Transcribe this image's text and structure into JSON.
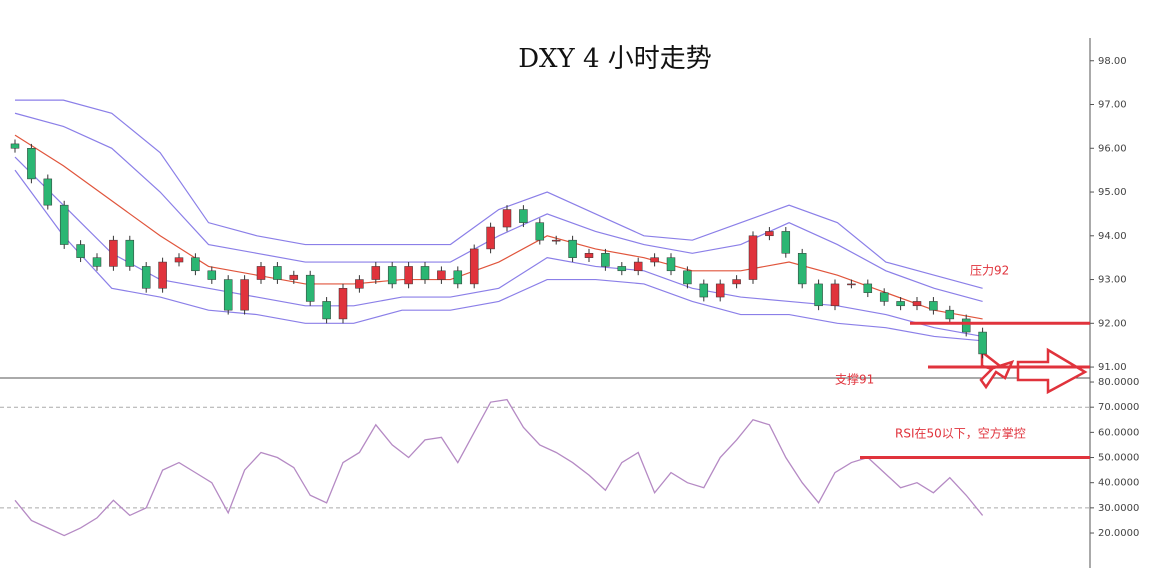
{
  "chart_data": [
    {
      "type": "candlestick",
      "title": "DXY 4 小时走势",
      "open": [
        96.1,
        96.0,
        95.3,
        94.7,
        93.8,
        93.5,
        93.3,
        93.9,
        93.3,
        92.8,
        93.4,
        93.5,
        93.2,
        93.0,
        92.3,
        93.0,
        93.3,
        93.0,
        93.1,
        92.5,
        92.1,
        92.8,
        93.0,
        93.3,
        92.9,
        93.3,
        93.0,
        93.2,
        92.9,
        93.7,
        94.2,
        94.6,
        94.3,
        93.9,
        93.9,
        93.5,
        93.6,
        93.3,
        93.2,
        93.4,
        93.5,
        93.2,
        92.9,
        92.6,
        92.9,
        93.0,
        94.0,
        94.1,
        93.6,
        92.9,
        92.4,
        92.9,
        92.9,
        92.7,
        92.5,
        92.4,
        92.5,
        92.3,
        92.1,
        91.8
      ],
      "high": [
        96.2,
        96.1,
        95.4,
        94.8,
        93.9,
        93.6,
        94.0,
        94.0,
        93.4,
        93.5,
        93.6,
        93.6,
        93.3,
        93.1,
        93.1,
        93.4,
        93.4,
        93.2,
        93.2,
        92.6,
        92.9,
        93.1,
        93.4,
        93.4,
        93.4,
        93.4,
        93.3,
        93.3,
        93.8,
        94.3,
        94.7,
        94.7,
        94.4,
        94.0,
        94.0,
        93.7,
        93.7,
        93.4,
        93.5,
        93.6,
        93.6,
        93.3,
        93.0,
        93.0,
        93.1,
        94.1,
        94.2,
        94.2,
        93.7,
        93.0,
        93.0,
        93.0,
        93.0,
        92.8,
        92.6,
        92.6,
        92.6,
        92.4,
        92.2,
        91.9
      ],
      "low": [
        95.9,
        95.2,
        94.6,
        93.7,
        93.4,
        93.2,
        93.2,
        93.2,
        92.7,
        92.7,
        93.3,
        93.1,
        92.9,
        92.2,
        92.2,
        92.9,
        92.9,
        92.9,
        92.4,
        92.0,
        92.0,
        92.7,
        92.9,
        92.8,
        92.8,
        92.9,
        92.9,
        92.8,
        92.8,
        93.6,
        94.1,
        94.2,
        93.8,
        93.8,
        93.4,
        93.4,
        93.2,
        93.1,
        93.1,
        93.3,
        93.1,
        92.8,
        92.5,
        92.5,
        92.8,
        92.9,
        93.9,
        93.5,
        92.8,
        92.3,
        92.3,
        92.8,
        92.6,
        92.4,
        92.3,
        92.3,
        92.2,
        92.0,
        91.7,
        91.2
      ],
      "close": [
        96.0,
        95.3,
        94.7,
        93.8,
        93.5,
        93.3,
        93.9,
        93.3,
        92.8,
        93.4,
        93.5,
        93.2,
        93.0,
        92.3,
        93.0,
        93.3,
        93.0,
        93.1,
        92.5,
        92.1,
        92.8,
        93.0,
        93.3,
        92.9,
        93.3,
        93.0,
        93.2,
        92.9,
        93.7,
        94.2,
        94.6,
        94.3,
        93.9,
        93.9,
        93.5,
        93.6,
        93.3,
        93.2,
        93.4,
        93.5,
        93.2,
        92.9,
        92.6,
        92.9,
        93.0,
        94.0,
        94.1,
        93.6,
        92.9,
        92.4,
        92.9,
        92.9,
        92.7,
        92.5,
        92.4,
        92.5,
        92.3,
        92.1,
        91.8,
        91.3
      ],
      "up_color": "#e0333c",
      "down_color": "#2bb673",
      "bands": [
        {
          "color": "#e0553c",
          "values": [
            96.3,
            95.6,
            94.8,
            94.0,
            93.3,
            93.1,
            92.9,
            92.9,
            93.0,
            93.0,
            93.4,
            94.0,
            93.7,
            93.5,
            93.2,
            93.2,
            93.4,
            93.1,
            92.7,
            92.3,
            92.1
          ]
        },
        {
          "color": "#8b7fe8",
          "values": [
            96.8,
            96.5,
            96.0,
            95.0,
            93.8,
            93.6,
            93.4,
            93.4,
            93.4,
            93.4,
            94.0,
            94.5,
            94.1,
            93.8,
            93.6,
            93.8,
            94.3,
            93.8,
            93.2,
            92.8,
            92.5
          ]
        },
        {
          "color": "#8b7fe8",
          "values": [
            97.1,
            97.1,
            96.8,
            95.9,
            94.3,
            94.0,
            93.8,
            93.8,
            93.8,
            93.8,
            94.6,
            95.0,
            94.5,
            94.0,
            93.9,
            94.3,
            94.7,
            94.3,
            93.4,
            93.1,
            92.8
          ]
        },
        {
          "color": "#8b7fe8",
          "values": [
            95.8,
            94.7,
            93.6,
            93.0,
            92.8,
            92.6,
            92.4,
            92.4,
            92.6,
            92.6,
            92.8,
            93.5,
            93.3,
            93.2,
            92.8,
            92.6,
            92.5,
            92.4,
            92.2,
            91.9,
            91.7
          ]
        },
        {
          "color": "#8b7fe8",
          "values": [
            95.5,
            94.0,
            92.8,
            92.6,
            92.3,
            92.2,
            92.0,
            92.0,
            92.3,
            92.3,
            92.5,
            93.0,
            93.0,
            92.9,
            92.5,
            92.2,
            92.2,
            92.0,
            91.9,
            91.7,
            91.6
          ]
        }
      ],
      "levels": [
        {
          "value": 92,
          "label": "压力92",
          "color": "#e0333c"
        },
        {
          "value": 91,
          "label": "支撑91",
          "color": "#e0333c"
        }
      ],
      "ylim": [
        90.75,
        98.52
      ],
      "yticks": [
        {
          "value": 91,
          "label": "91.00"
        },
        {
          "value": 92,
          "label": "92.00"
        },
        {
          "value": 93,
          "label": "93.00"
        },
        {
          "value": 94,
          "label": "94.00"
        },
        {
          "value": 95,
          "label": "95.00"
        },
        {
          "value": 96,
          "label": "96.00"
        },
        {
          "value": 97,
          "label": "97.00"
        },
        {
          "value": 98,
          "label": "98.00"
        }
      ]
    },
    {
      "type": "line",
      "color": "#b58ac4",
      "values": [
        33,
        25,
        22,
        19,
        22,
        26,
        33,
        27,
        30,
        45,
        48,
        44,
        40,
        28,
        45,
        52,
        50,
        46,
        35,
        32,
        48,
        52,
        63,
        55,
        50,
        57,
        58,
        48,
        60,
        72,
        73,
        62,
        55,
        52,
        48,
        43,
        37,
        48,
        52,
        36,
        44,
        40,
        38,
        50,
        57,
        65,
        63,
        50,
        40,
        32,
        44,
        48,
        50,
        44,
        38,
        40,
        36,
        42,
        35,
        27
      ],
      "ref_lines": [
        70,
        30
      ],
      "levels": [
        {
          "value": 50,
          "label": "RSI在50以下，空方掌控",
          "color": "#e0333c"
        }
      ],
      "ylim": [
        6.1,
        81.6
      ],
      "yticks": [
        {
          "value": 20,
          "label": "20.0000"
        },
        {
          "value": 30,
          "label": "30.0000"
        },
        {
          "value": 40,
          "label": "40.0000"
        },
        {
          "value": 50,
          "label": "50.0000"
        },
        {
          "value": 60,
          "label": "60.0000"
        },
        {
          "value": 70,
          "label": "70.0000"
        },
        {
          "value": 80,
          "label": "80.0000"
        }
      ]
    }
  ]
}
